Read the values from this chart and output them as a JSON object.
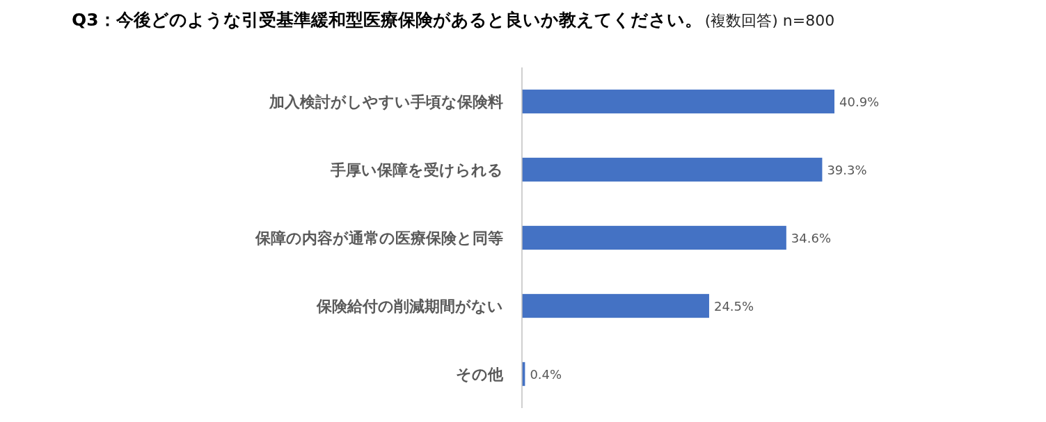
{
  "chart_data": {
    "type": "bar",
    "orientation": "horizontal",
    "title": "Q3：今後どのような引受基準緩和型医療保険があると良いか教えてください。",
    "subtitle": "(複数回答) n=800",
    "categories": [
      "加入検討がしやすい手頃な保険料",
      "手厚い保障を受けられる",
      "保障の内容が通常の医療保険と同等",
      "保険給付の削減期間がない",
      "その他"
    ],
    "values": [
      40.9,
      39.3,
      34.6,
      24.5,
      0.4
    ],
    "value_labels": [
      "40.9%",
      "39.3%",
      "34.6%",
      "24.5%",
      "0.4%"
    ],
    "color": "#4472c4"
  }
}
